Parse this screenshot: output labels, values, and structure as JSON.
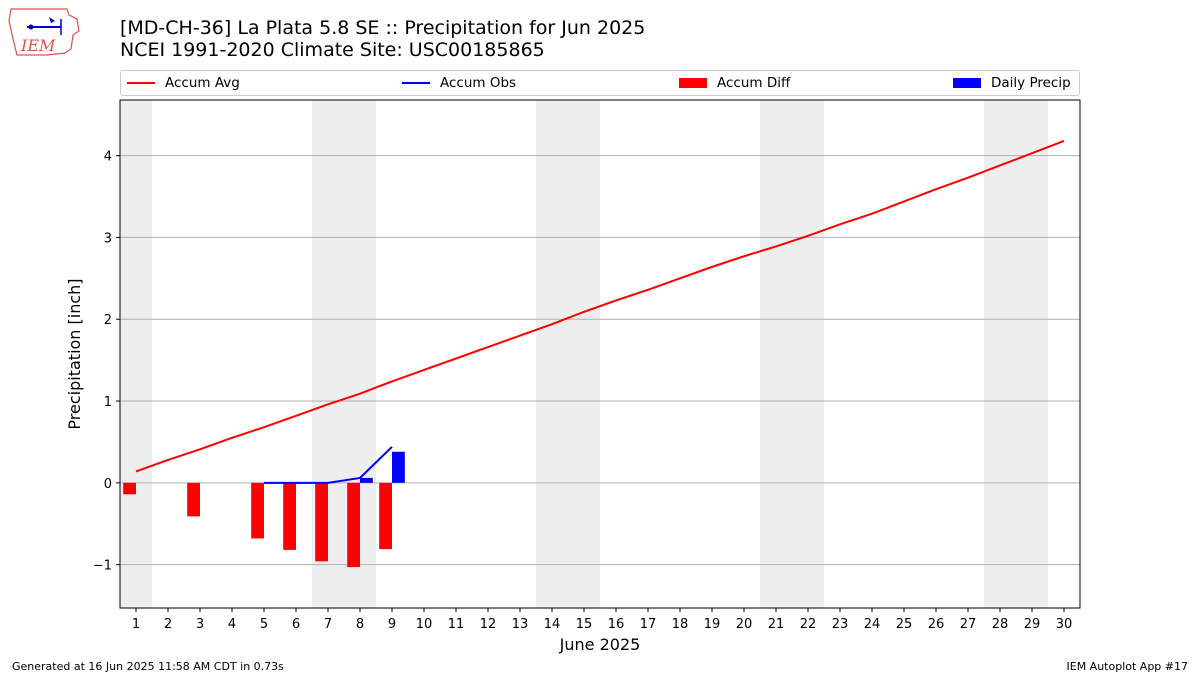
{
  "header": {
    "title_line1": "[MD-CH-36] La Plata 5.8 SE :: Precipitation for Jun 2025",
    "title_line2": "NCEI 1991-2020 Climate Site: USC00185865",
    "logo_text": "IEM"
  },
  "legend": [
    {
      "label": "Accum Avg",
      "color": "#ff0000",
      "kind": "line"
    },
    {
      "label": "Accum Obs",
      "color": "#0000ff",
      "kind": "line"
    },
    {
      "label": "Accum Diff",
      "color": "#ff0000",
      "kind": "patch"
    },
    {
      "label": "Daily Precip",
      "color": "#0000ff",
      "kind": "patch"
    }
  ],
  "footer": {
    "generated": "Generated at 16 Jun 2025 11:58 AM CDT in 0.73s",
    "app": "IEM Autoplot App #17"
  },
  "chart_data": {
    "type": "bar",
    "xlabel": "June 2025",
    "ylabel": "Precipitation [inch]",
    "xlim": [
      0.5,
      30.5
    ],
    "ylim": [
      -1.53,
      4.68
    ],
    "yticks": [
      -1,
      0,
      1,
      2,
      3,
      4
    ],
    "xticks": [
      1,
      2,
      3,
      4,
      5,
      6,
      7,
      8,
      9,
      10,
      11,
      12,
      13,
      14,
      15,
      16,
      17,
      18,
      19,
      20,
      21,
      22,
      23,
      24,
      25,
      26,
      27,
      28,
      29,
      30
    ],
    "grid": "horizontal",
    "weekend_shading": [
      [
        0.5,
        1.5
      ],
      [
        6.5,
        8.5
      ],
      [
        13.5,
        15.5
      ],
      [
        20.5,
        22.5
      ],
      [
        27.5,
        29.5
      ]
    ],
    "colors": {
      "avg": "#ff0000",
      "obs": "#0000ff",
      "diff": "#ff0000",
      "daily": "#0000ff",
      "shade": "#eeeeee",
      "grid": "#b0b0b0"
    },
    "accum_avg": {
      "x": [
        1,
        2,
        3,
        4,
        5,
        6,
        7,
        8,
        9,
        10,
        11,
        12,
        13,
        14,
        15,
        16,
        17,
        18,
        19,
        20,
        21,
        22,
        23,
        24,
        25,
        26,
        27,
        28,
        29,
        30
      ],
      "values": [
        0.14,
        0.28,
        0.41,
        0.55,
        0.68,
        0.82,
        0.96,
        1.09,
        1.24,
        1.38,
        1.52,
        1.66,
        1.8,
        1.94,
        2.09,
        2.23,
        2.36,
        2.5,
        2.64,
        2.77,
        2.89,
        3.02,
        3.16,
        3.29,
        3.44,
        3.59,
        3.73,
        3.88,
        4.03,
        4.18
      ]
    },
    "accum_obs": {
      "x": [
        5,
        6,
        7,
        8,
        9
      ],
      "values": [
        0.0,
        0.0,
        0.0,
        0.06,
        0.44
      ]
    },
    "accum_diff": {
      "x": [
        1,
        3,
        5,
        6,
        7,
        8,
        9
      ],
      "values": [
        -0.14,
        -0.41,
        -0.68,
        -0.82,
        -0.96,
        -1.03,
        -0.81
      ]
    },
    "daily_precip": {
      "x": [
        8,
        9
      ],
      "values": [
        0.06,
        0.38
      ]
    }
  }
}
